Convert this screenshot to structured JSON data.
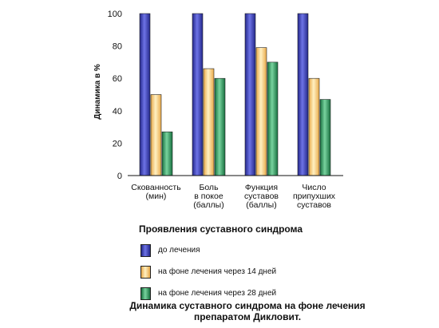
{
  "chart_data": {
    "type": "bar",
    "ylabel": "Динамика в %",
    "ylim": [
      0,
      100
    ],
    "yticks": [
      "0",
      "20",
      "40",
      "60",
      "80",
      "100"
    ],
    "categories": [
      [
        "Скованность",
        "(мин)"
      ],
      [
        "Боль",
        "в покое",
        "(баллы)"
      ],
      [
        "Функция",
        "суставов",
        "(баллы)"
      ],
      [
        "Число",
        "припухших",
        "суставов"
      ]
    ],
    "series": [
      {
        "name": "до лечения",
        "color": "#3a3fb0",
        "values": [
          100,
          100,
          100,
          100
        ]
      },
      {
        "name": "на фоне лечения через 14 дней",
        "color": "#f7c978",
        "values": [
          50,
          66,
          79,
          60
        ]
      },
      {
        "name": "на фоне лечения через 28 дней",
        "color": "#2e9c5f",
        "values": [
          27,
          60,
          70,
          47
        ]
      }
    ],
    "legend_title": "Проявления суставного синдрома",
    "grid": false
  },
  "caption": {
    "line1": "Динамика суставного синдрома на фоне лечения",
    "line2": "препаратом Дикловит."
  }
}
